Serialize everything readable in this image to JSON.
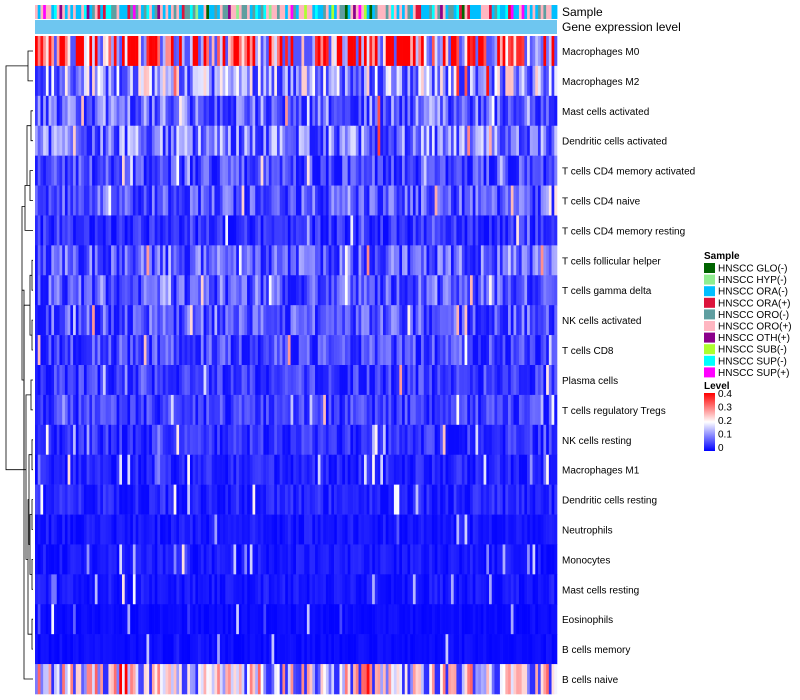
{
  "chart_data": {
    "type": "heatmap",
    "title": "",
    "annotation_labels": {
      "sample": "Sample",
      "gene_expression_level": "Gene expression level"
    },
    "rows": [
      "Macrophages M0",
      "Macrophages M2",
      "Mast cells activated",
      "Dendritic cells activated",
      "T cells CD4 memory activated",
      "T cells CD4 naive",
      "T cells CD4 memory resting",
      "T cells follicular helper",
      "T cells gamma delta",
      "NK cells activated",
      "T cells CD8",
      "Plasma cells",
      "T cells regulatory  Tregs",
      "NK cells resting",
      "Macrophages M1",
      "Dendritic cells resting",
      "Neutrophils",
      "Monocytes",
      "Mast cells resting",
      "Eosinophils",
      "B cells memory",
      "B cells naive"
    ],
    "row_mean_levels": [
      0.32,
      0.14,
      0.09,
      0.1,
      0.06,
      0.07,
      0.04,
      0.08,
      0.07,
      0.07,
      0.06,
      0.05,
      0.05,
      0.04,
      0.03,
      0.03,
      0.02,
      0.02,
      0.02,
      0.01,
      0.01,
      0.18
    ],
    "column_count": 192,
    "value_range": [
      0,
      0.4
    ],
    "legend": {
      "sample_title": "Sample",
      "sample_groups": [
        {
          "name": "HNSCC GLO(-)",
          "color": "#006400"
        },
        {
          "name": "HNSCC HYP(-)",
          "color": "#90ee90"
        },
        {
          "name": "HNSCC ORA(-)",
          "color": "#00bfff"
        },
        {
          "name": "HNSCC ORA(+)",
          "color": "#dc143c"
        },
        {
          "name": "HNSCC ORO(-)",
          "color": "#5f9ea0"
        },
        {
          "name": "HNSCC ORO(+)",
          "color": "#ffb6c1"
        },
        {
          "name": "HNSCC OTH(+)",
          "color": "#8b008b"
        },
        {
          "name": "HNSCC SUB(-)",
          "color": "#adff2f"
        },
        {
          "name": "HNSCC SUP(-)",
          "color": "#00ffff"
        },
        {
          "name": "HNSCC SUP(+)",
          "color": "#ff00ff"
        }
      ],
      "level_title": "Level",
      "level_ticks": [
        "0.4",
        "0.3",
        "0.2",
        "0.1",
        "0"
      ],
      "level_colors": [
        "#0000ff",
        "#ffffff",
        "#ff0000"
      ]
    },
    "annotation_color": "#6ec6f0",
    "row_dendrogram": true
  }
}
